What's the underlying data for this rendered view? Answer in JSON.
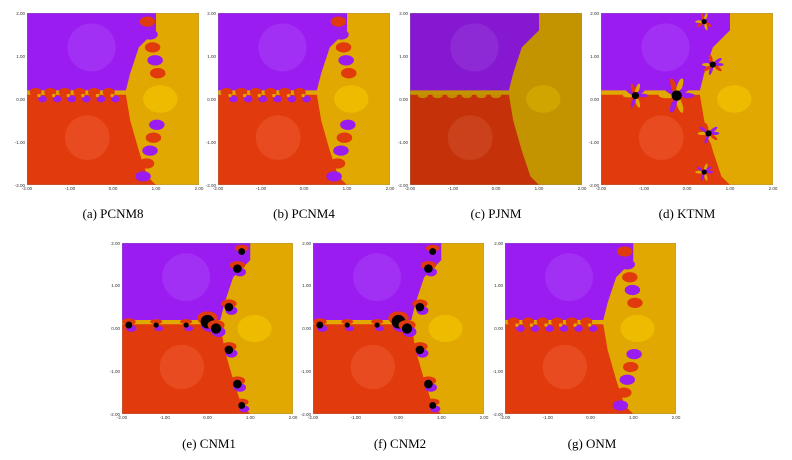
{
  "figures": [
    {
      "id": "a",
      "caption": "(a)  PCNM8",
      "style": "pcnm"
    },
    {
      "id": "b",
      "caption": "(b)  PCNM4",
      "style": "pcnm"
    },
    {
      "id": "c",
      "caption": "(c)  PJNM",
      "style": "pjnm"
    },
    {
      "id": "d",
      "caption": "(d)  KTNM",
      "style": "ktnm"
    },
    {
      "id": "e",
      "caption": "(e)  CNM1",
      "style": "cnm"
    },
    {
      "id": "f",
      "caption": "(f)  CNM2",
      "style": "cnm"
    },
    {
      "id": "g",
      "caption": "(g)  ONM",
      "style": "onm"
    }
  ],
  "axis": {
    "x_ticks": [
      "-2.00",
      "-1.00",
      "0.00",
      "1.00",
      "2.00"
    ],
    "y_ticks": [
      "2.00",
      "1.00",
      "0.00",
      "-1.00",
      "-2.00"
    ],
    "xlim": [
      -2,
      2
    ],
    "ylim": [
      -2,
      2
    ]
  },
  "colors": {
    "purple": "#9a1cf0",
    "purple_light": "#a83cf6",
    "yellow": "#e0a800",
    "yellow_light": "#f0c000",
    "red": "#e13a0c",
    "red_light": "#ec5a30",
    "black": "#000000"
  }
}
